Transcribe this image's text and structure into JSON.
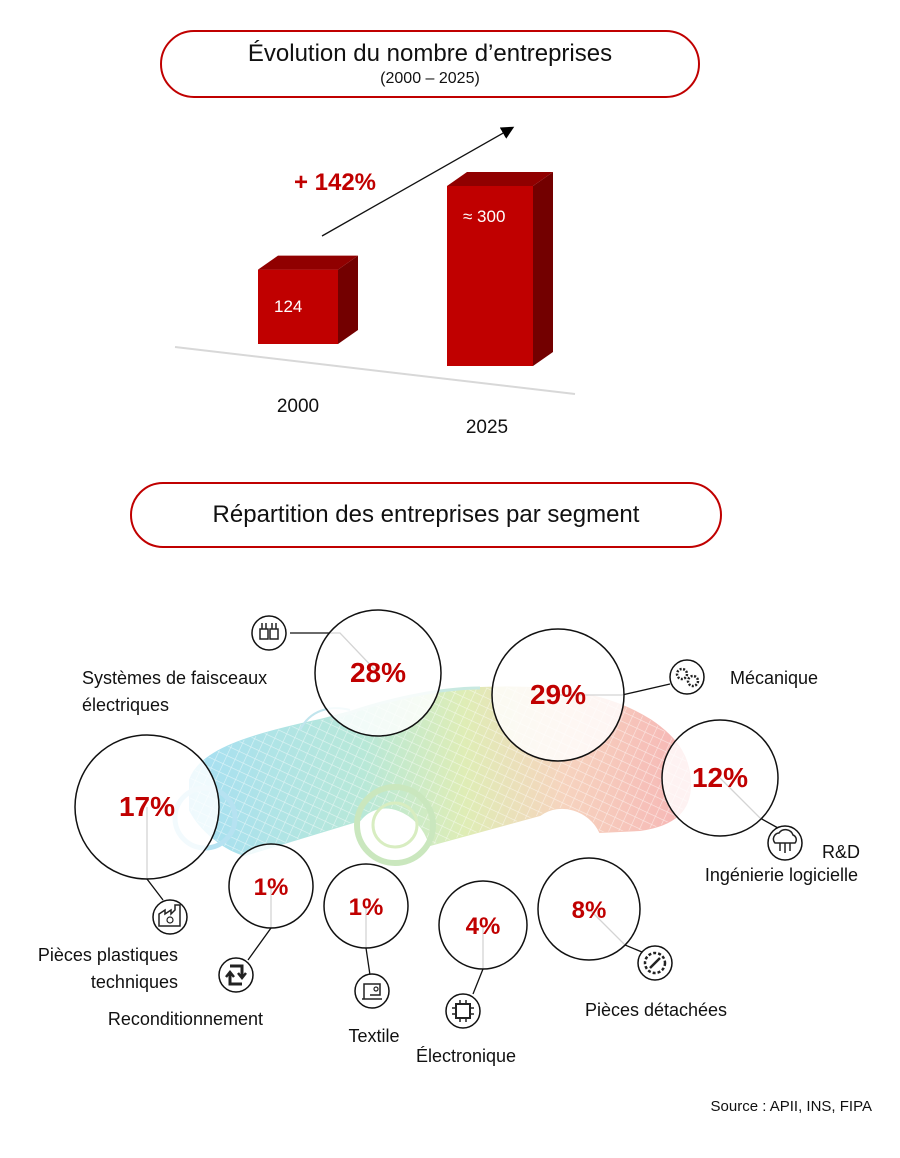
{
  "chart_data": [
    {
      "type": "bar",
      "title": "Évolution du nombre d’entreprises",
      "subtitle": "(2000 – 2025)",
      "categories": [
        "2000",
        "2025"
      ],
      "values": [
        124,
        300
      ],
      "value_labels": [
        "124",
        "≈ 300"
      ],
      "annotation": "+ 142%",
      "bar_color": "#c00000"
    },
    {
      "type": "bubble",
      "title": "Répartition des entreprises par segment",
      "segments": [
        {
          "name": "Systèmes de faisceaux électriques",
          "label_lines": [
            "Systèmes de faisceaux",
            "électriques"
          ],
          "value": 28,
          "display": "28%",
          "icon": "wiring-harness-icon"
        },
        {
          "name": "Mécanique",
          "label_lines": [
            "Mécanique"
          ],
          "value": 29,
          "display": "29%",
          "icon": "gears-icon"
        },
        {
          "name": "R&D Ingénierie logicielle",
          "label_lines": [
            "R&D",
            "Ingénierie logicielle"
          ],
          "value": 12,
          "display": "12%",
          "icon": "cloud-circuit-icon"
        },
        {
          "name": "Pièces plastiques techniques",
          "label_lines": [
            "Pièces plastiques",
            "techniques"
          ],
          "value": 17,
          "display": "17%",
          "icon": "factory-recycle-icon"
        },
        {
          "name": "Reconditionnement",
          "label_lines": [
            "Reconditionnement"
          ],
          "value": 1,
          "display": "1%",
          "icon": "refresh-icon"
        },
        {
          "name": "Textile",
          "label_lines": [
            "Textile"
          ],
          "value": 1,
          "display": "1%",
          "icon": "sewing-machine-icon"
        },
        {
          "name": "Électronique",
          "label_lines": [
            "Électronique"
          ],
          "value": 4,
          "display": "4%",
          "icon": "chip-icon"
        },
        {
          "name": "Pièces détachées",
          "label_lines": [
            "Pièces détachées"
          ],
          "value": 8,
          "display": "8%",
          "icon": "gear-wrench-icon"
        }
      ],
      "accent_color": "#c00000"
    }
  ],
  "source": "Source : APII, INS, FIPA"
}
